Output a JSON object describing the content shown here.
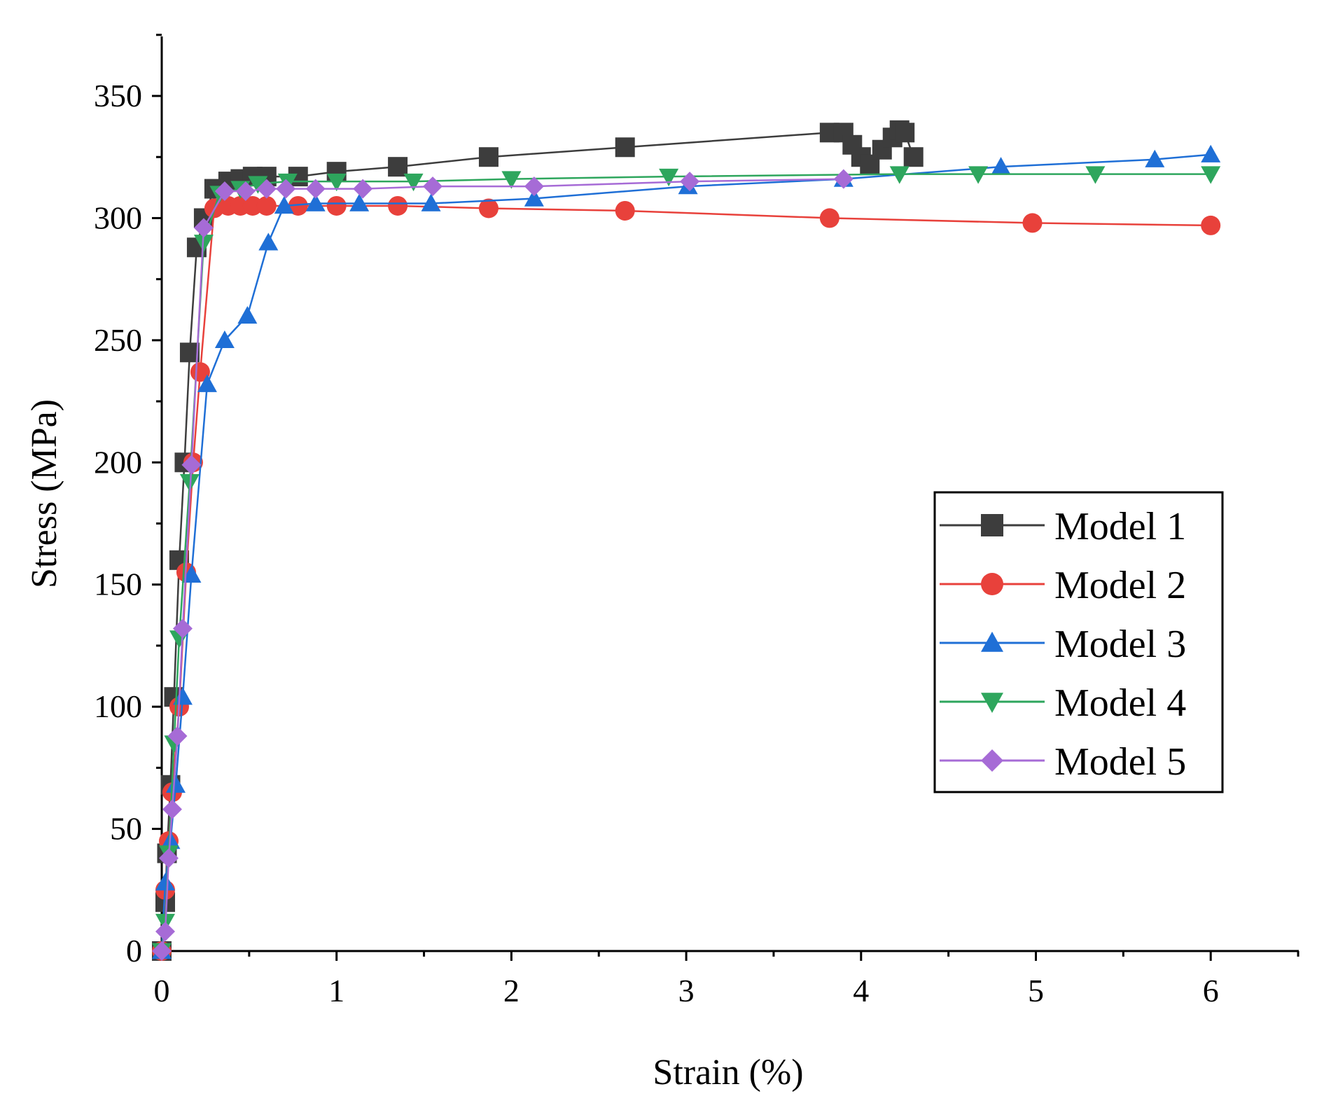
{
  "chart_data": {
    "type": "line",
    "title": "",
    "xlabel": "Strain (%)",
    "ylabel": "Stress (MPa)",
    "xlim": [
      0,
      6.5
    ],
    "ylim": [
      0,
      375
    ],
    "xticks": [
      0,
      1,
      2,
      3,
      4,
      5,
      6
    ],
    "yticks": [
      0,
      50,
      100,
      150,
      200,
      250,
      300,
      350
    ],
    "grid": false,
    "legend_position": "right",
    "series": [
      {
        "name": "Model 1",
        "color": "#3d3d3d",
        "marker": "square",
        "x": [
          0.0,
          0.02,
          0.03,
          0.05,
          0.07,
          0.1,
          0.13,
          0.16,
          0.2,
          0.24,
          0.3,
          0.38,
          0.45,
          0.52,
          0.6,
          0.78,
          1.0,
          1.35,
          1.87,
          2.65,
          3.82,
          3.9,
          3.95,
          4.0,
          4.05,
          4.12,
          4.18,
          4.22,
          4.25,
          4.3
        ],
        "y": [
          0,
          20,
          40,
          68,
          104,
          160,
          200,
          245,
          288,
          300,
          312,
          315,
          316,
          317,
          317,
          317,
          319,
          321,
          325,
          329,
          335,
          335,
          330,
          325,
          322,
          328,
          333,
          336,
          335,
          325
        ]
      },
      {
        "name": "Model 2",
        "color": "#e8413b",
        "marker": "circle",
        "x": [
          0.0,
          0.02,
          0.04,
          0.06,
          0.1,
          0.14,
          0.18,
          0.22,
          0.3,
          0.38,
          0.45,
          0.52,
          0.6,
          0.78,
          1.0,
          1.35,
          1.87,
          2.65,
          3.82,
          4.98,
          6.0
        ],
        "y": [
          0,
          25,
          45,
          65,
          100,
          155,
          200,
          237,
          304,
          305,
          305,
          305,
          305,
          305,
          305,
          305,
          304,
          303,
          300,
          298,
          297
        ]
      },
      {
        "name": "Model 3",
        "color": "#1f6fd6",
        "marker": "triangle-up",
        "x": [
          0.0,
          0.02,
          0.05,
          0.08,
          0.12,
          0.17,
          0.26,
          0.36,
          0.49,
          0.61,
          0.7,
          0.88,
          1.13,
          1.54,
          2.13,
          3.01,
          3.9,
          4.8,
          5.68,
          6.0
        ],
        "y": [
          0,
          28,
          45,
          68,
          104,
          154,
          232,
          250,
          260,
          290,
          305,
          306,
          306,
          306,
          308,
          313,
          316,
          321,
          324,
          326
        ]
      },
      {
        "name": "Model 4",
        "color": "#2ea65d",
        "marker": "triangle-down",
        "x": [
          0.0,
          0.02,
          0.04,
          0.07,
          0.1,
          0.16,
          0.24,
          0.33,
          0.45,
          0.55,
          0.72,
          1.0,
          1.44,
          2.0,
          2.9,
          4.22,
          4.67,
          5.34,
          6.0
        ],
        "y": [
          0,
          12,
          40,
          85,
          128,
          192,
          290,
          310,
          312,
          314,
          315,
          315,
          315,
          316,
          317,
          318,
          318,
          318,
          318
        ]
      },
      {
        "name": "Model 5",
        "color": "#a66bd6",
        "marker": "diamond",
        "x": [
          0.0,
          0.02,
          0.04,
          0.06,
          0.09,
          0.12,
          0.17,
          0.24,
          0.36,
          0.48,
          0.6,
          0.71,
          0.88,
          1.15,
          1.55,
          2.13,
          3.02,
          3.9
        ],
        "y": [
          0,
          8,
          38,
          58,
          88,
          132,
          199,
          296,
          311,
          311,
          312,
          312,
          312,
          312,
          313,
          313,
          315,
          316
        ]
      }
    ]
  }
}
